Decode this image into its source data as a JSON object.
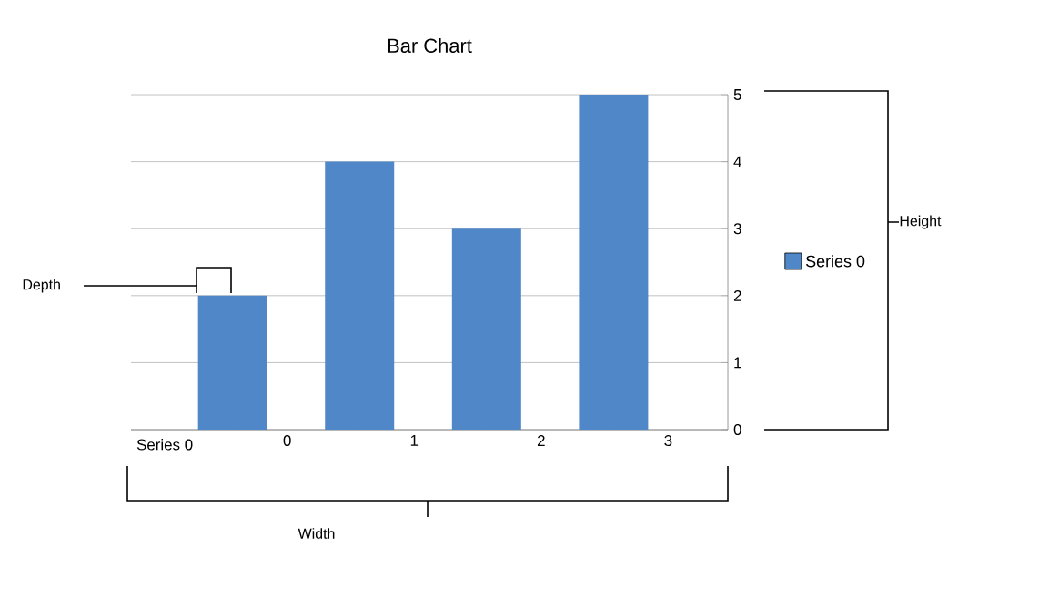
{
  "chart_data": {
    "type": "bar",
    "title": "Bar Chart",
    "xlabel": "Series 0",
    "categories": [
      "0",
      "1",
      "2",
      "3"
    ],
    "series": [
      {
        "name": "Series 0",
        "color": "#5087c8",
        "values": [
          2,
          4,
          3,
          5
        ]
      }
    ],
    "ylim": [
      0,
      5
    ],
    "yticks": [
      0,
      1,
      2,
      3,
      4,
      5
    ],
    "grid": "y",
    "legend": "right",
    "annotations": [
      "Depth",
      "Height",
      "Width"
    ]
  }
}
